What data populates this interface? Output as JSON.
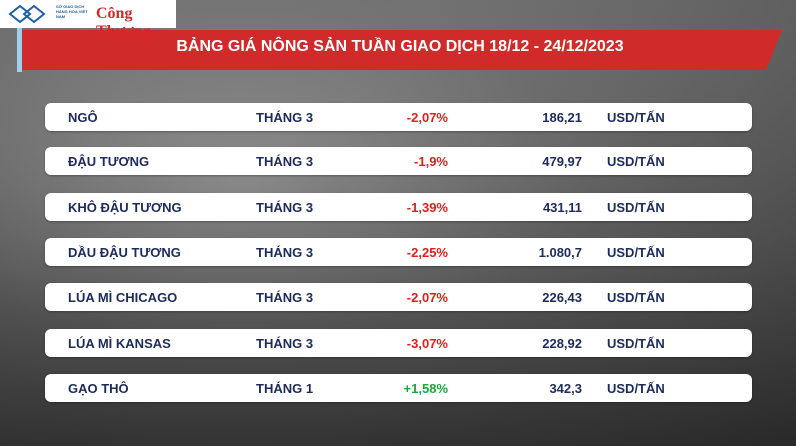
{
  "header": {
    "exchange_logo": "SỞ GIAO DỊCH HÀNG HÓA VIỆT NAM",
    "brand_logo": "Công Thương",
    "title": "BẢNG GIÁ NÔNG SẢN TUẦN GIAO DỊCH 18/12 - 24/12/2023"
  },
  "table": {
    "rows": [
      [
        "NGÔ",
        "THÁNG 3",
        "-2,07%",
        "186,21",
        "USD/TẤN"
      ],
      [
        "ĐẬU TƯƠNG",
        "THÁNG 3",
        "-1,9%",
        "479,97",
        "USD/TẤN"
      ],
      [
        "KHÔ ĐẬU TƯƠNG",
        "THÁNG 3",
        "-1,39%",
        "431,11",
        "USD/TẤN"
      ],
      [
        "DẦU ĐẬU TƯƠNG",
        "THÁNG 3",
        "-2,25%",
        "1.080,7",
        "USD/TẤN"
      ],
      [
        "LÚA MÌ CHICAGO",
        "THÁNG 3",
        "-2,07%",
        "226,43",
        "USD/TẤN"
      ],
      [
        "LÚA MÌ KANSAS",
        "THÁNG 3",
        "-3,07%",
        "228,92",
        "USD/TẤN"
      ],
      [
        "GẠO THÔ",
        "THÁNG 1",
        "+1,58%",
        "342,3",
        "USD/TẤN"
      ]
    ]
  }
}
